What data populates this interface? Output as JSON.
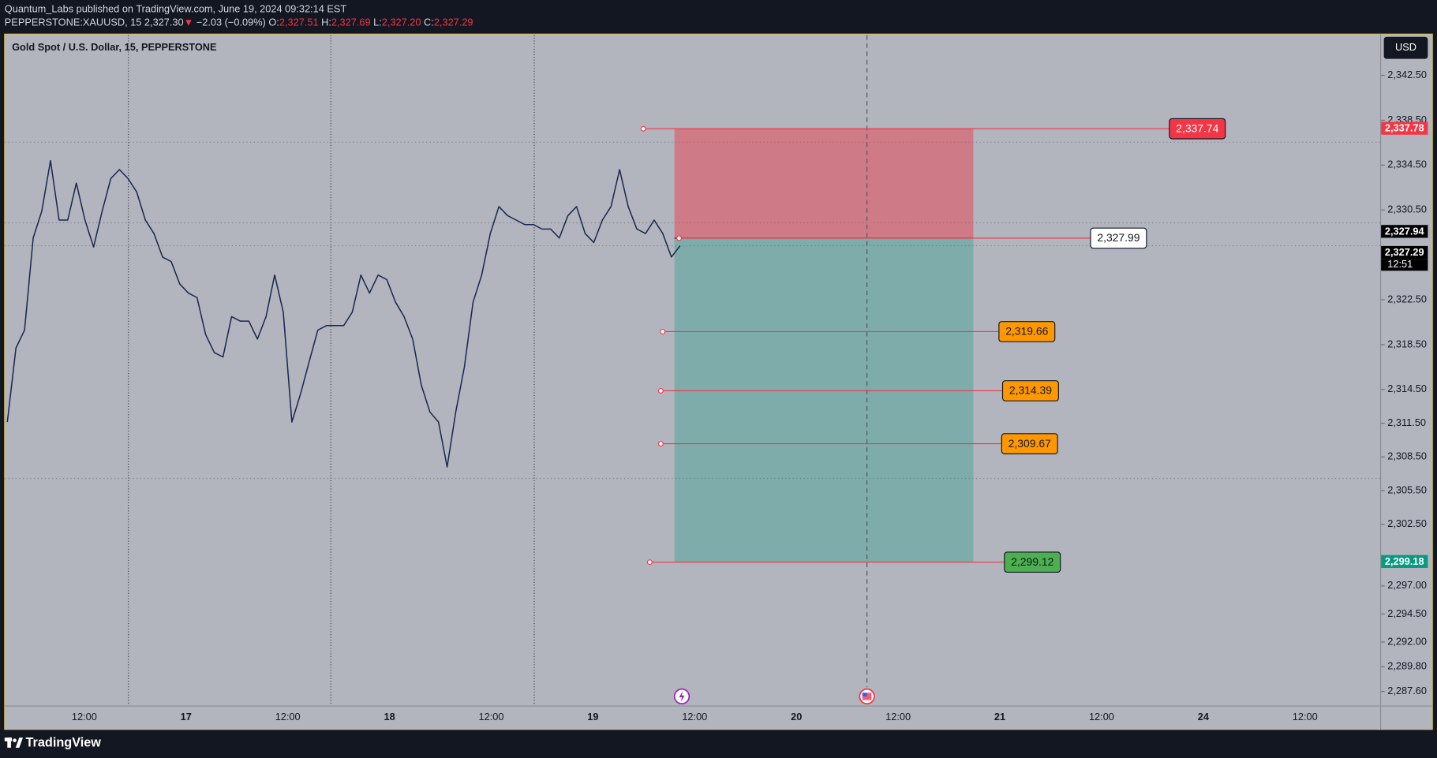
{
  "header": {
    "publisher": "Quantum_Labs published on TradingView.com, June 19, 2024 09:32:14 EST",
    "symbol": "PEPPERSTONE:XAUUSD, 15",
    "last": "2,327.30",
    "direction": "▼",
    "change": "−2.03 (−0.09%)",
    "ohlc": [
      {
        "key": "O:",
        "value": "2,327.51"
      },
      {
        "key": "H:",
        "value": "2,327.69"
      },
      {
        "key": "L:",
        "value": "2,327.20"
      },
      {
        "key": "C:",
        "value": "2,327.29"
      }
    ]
  },
  "chart_data": {
    "type": "line",
    "title": "Gold Spot / U.S. Dollar, 15, PEPPERSTONE",
    "currency": "USD",
    "color": "#1b2550",
    "values": [
      2311.6,
      2318.2,
      2319.8,
      2328.0,
      2330.4,
      2334.9,
      2329.6,
      2329.6,
      2332.9,
      2329.6,
      2327.2,
      2330.4,
      2333.3,
      2334.1,
      2333.3,
      2332.1,
      2329.6,
      2328.4,
      2326.3,
      2325.9,
      2323.9,
      2323.1,
      2322.7,
      2319.4,
      2317.8,
      2317.4,
      2321.0,
      2320.6,
      2320.6,
      2319.0,
      2321.0,
      2324.7,
      2321.4,
      2311.6,
      2314.1,
      2317.0,
      2319.8,
      2320.2,
      2320.2,
      2320.2,
      2321.4,
      2324.7,
      2323.1,
      2324.7,
      2324.3,
      2322.3,
      2321.0,
      2319.0,
      2314.9,
      2312.5,
      2311.6,
      2307.6,
      2312.5,
      2316.5,
      2322.3,
      2324.7,
      2328.4,
      2330.8,
      2330.0,
      2329.6,
      2329.2,
      2329.2,
      2328.8,
      2328.8,
      2328.0,
      2330.0,
      2330.8,
      2328.4,
      2327.6,
      2329.6,
      2330.8,
      2334.1,
      2330.8,
      2328.8,
      2328.4,
      2329.6,
      2328.4,
      2326.3,
      2327.3
    ],
    "ylim": [
      2286.34,
      2346.09
    ],
    "yticks": [
      {
        "value": 2342.5,
        "label": "2,342.50"
      },
      {
        "value": 2338.5,
        "label": "2,338.50"
      },
      {
        "value": 2334.5,
        "label": "2,334.50"
      },
      {
        "value": 2330.5,
        "label": "2,330.50"
      },
      {
        "value": 2322.5,
        "label": "2,322.50"
      },
      {
        "value": 2318.5,
        "label": "2,318.50"
      },
      {
        "value": 2314.5,
        "label": "2,314.50"
      },
      {
        "value": 2311.5,
        "label": "2,311.50"
      },
      {
        "value": 2308.5,
        "label": "2,308.50"
      },
      {
        "value": 2305.5,
        "label": "2,305.50"
      },
      {
        "value": 2302.5,
        "label": "2,302.50"
      },
      {
        "value": 2297.0,
        "label": "2,297.00"
      },
      {
        "value": 2294.5,
        "label": "2,294.50"
      },
      {
        "value": 2292.0,
        "label": "2,292.00"
      },
      {
        "value": 2289.8,
        "label": "2,289.80"
      },
      {
        "value": 2287.6,
        "label": "2,287.60"
      }
    ],
    "xticks": [
      "12:00",
      "17",
      "12:00",
      "18",
      "12:00",
      "19",
      "12:00",
      "20",
      "12:00",
      "21",
      "12:00",
      "24",
      "12:00"
    ],
    "levels": [
      {
        "value": 2337.74,
        "label": "2,337.74",
        "color": "#f23645"
      },
      {
        "value": 2327.99,
        "label": "2,327.99",
        "color": "#ffffff"
      },
      {
        "value": 2319.66,
        "label": "2,319.66",
        "color": "#ff9800"
      },
      {
        "value": 2314.39,
        "label": "2,314.39",
        "color": "#ff9800"
      },
      {
        "value": 2309.67,
        "label": "2,309.67",
        "color": "#ff9800"
      },
      {
        "value": 2299.12,
        "label": "2,299.12",
        "color": "#4caf50"
      }
    ],
    "price_tags": [
      {
        "value": 2337.78,
        "label": "2,337.78",
        "color": "#f23645"
      },
      {
        "value": 2327.94,
        "label": "2,327.94",
        "color": "#000000"
      },
      {
        "value": 2327.29,
        "label": "2,327.29",
        "color": "#000000"
      },
      {
        "value": 2299.18,
        "label": "2,299.18",
        "color": "#089981"
      }
    ],
    "countdown": "12:51"
  },
  "footer": {
    "brand": "TradingView"
  }
}
